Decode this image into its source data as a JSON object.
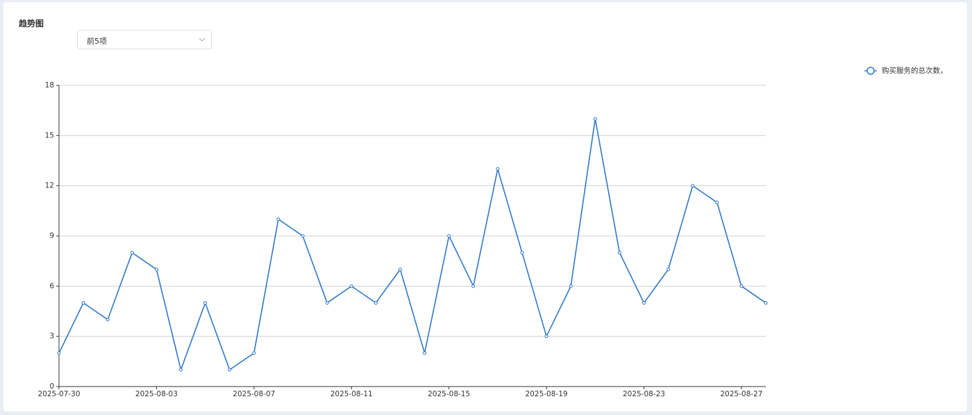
{
  "page": {
    "title": "趋势图",
    "dropdown": "前5项"
  },
  "chart_data": {
    "type": "line",
    "categories": [
      "2025-07-30",
      null,
      null,
      null,
      "2025-08-03",
      null,
      null,
      null,
      "2025-08-07",
      null,
      null,
      null,
      "2025-08-11",
      null,
      null,
      null,
      "2025-08-15",
      null,
      null,
      null,
      "2025-08-19",
      null,
      null,
      null,
      "2025-08-23",
      null,
      null,
      null,
      "2025-08-27",
      null
    ],
    "series": [
      {
        "name": "购买服务的总次数，",
        "color": "#2f78c8",
        "values": [
          2,
          5,
          4,
          8,
          7,
          1,
          5,
          1,
          2,
          10,
          9,
          5,
          6,
          5,
          7,
          2,
          9,
          6,
          13,
          8,
          3,
          6,
          16,
          8,
          5,
          7,
          12,
          11,
          6,
          5
        ]
      }
    ],
    "ylim": [
      0,
      18
    ],
    "yticks": [
      0,
      3,
      6,
      9,
      12,
      15,
      18
    ],
    "grid": true,
    "legend": "top-right"
  }
}
